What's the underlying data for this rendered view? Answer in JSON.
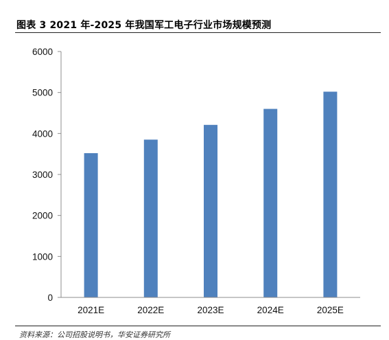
{
  "figure": {
    "title": "图表 3 2021 年-2025 年我国军工电子行业市场规模预测",
    "source": "资料来源：公司招股说明书，华安证券研究所"
  },
  "chart_data": {
    "type": "bar",
    "title": "",
    "xlabel": "",
    "ylabel": "",
    "categories": [
      "2021E",
      "2022E",
      "2023E",
      "2024E",
      "2025E"
    ],
    "values": [
      3520,
      3850,
      4210,
      4600,
      5020
    ],
    "ylim": [
      0,
      6000
    ],
    "yticks": [
      0,
      1000,
      2000,
      3000,
      4000,
      5000,
      6000
    ],
    "grid": false,
    "legend": "none",
    "bar_color": "#4F81BD"
  }
}
